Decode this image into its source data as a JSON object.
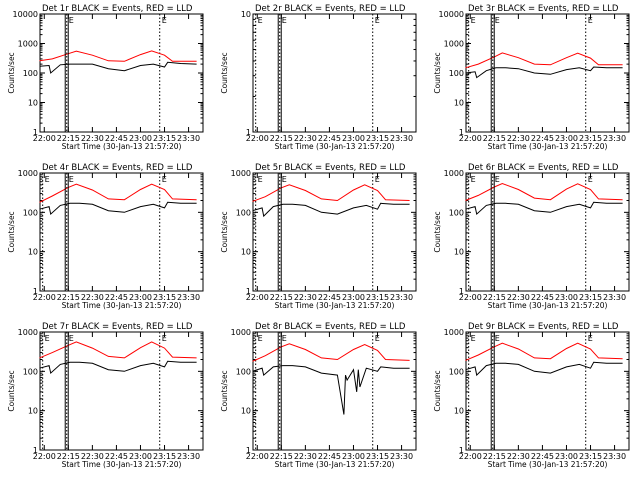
{
  "colors": {
    "events": "#000000",
    "lld": "#ff0000",
    "axes": "#000000",
    "background": "#ffffff"
  },
  "chart_data": [
    {
      "type": "line",
      "title": "Det 1r BLACK = Events, RED = LLD",
      "xlabel": "Start Time (30-Jan-13 21:57:20)",
      "ylabel": "Counts/sec",
      "x_ticks": [
        "22:00",
        "22:15",
        "22:30",
        "22:45",
        "23:00",
        "23:15",
        "23:30"
      ],
      "y_ticks": [
        "1",
        "10",
        "100",
        "1000",
        "10000"
      ],
      "ylim": [
        1,
        10000
      ],
      "log_y": true,
      "markers": [
        {
          "time": "22:14",
          "label": "E"
        },
        {
          "time": "23:12",
          "label": "E"
        }
      ],
      "series": [
        {
          "name": "BLACK = Events",
          "color": "#000000",
          "x": [
            "21:57",
            "22:03",
            "22:04",
            "22:10",
            "22:16",
            "22:22",
            "22:30",
            "22:40",
            "22:50",
            "23:00",
            "23:08",
            "23:15",
            "23:17",
            "23:25",
            "23:35"
          ],
          "y": [
            170,
            180,
            100,
            190,
            200,
            200,
            200,
            140,
            120,
            180,
            200,
            160,
            230,
            210,
            200
          ]
        },
        {
          "name": "RED = LLD",
          "color": "#ff0000",
          "x": [
            "21:57",
            "22:05",
            "22:15",
            "22:20",
            "22:30",
            "22:40",
            "22:50",
            "23:00",
            "23:07",
            "23:15",
            "23:20",
            "23:35"
          ],
          "y": [
            260,
            300,
            450,
            550,
            400,
            260,
            250,
            420,
            560,
            400,
            250,
            250
          ]
        }
      ]
    },
    {
      "type": "line",
      "title": "Det 2r BLACK = Events, RED = LLD",
      "xlabel": "Start Time (30-Jan-13 21:57:20)",
      "ylabel": "Counts/sec",
      "x_ticks": [
        "22:00",
        "22:15",
        "22:30",
        "22:45",
        "23:00",
        "23:15",
        "23:30"
      ],
      "y_ticks": [
        "1",
        "10"
      ],
      "ylim": [
        1,
        10
      ],
      "log_y": true,
      "markers": [
        {
          "time": "21:59",
          "label": "E"
        },
        {
          "time": "22:14",
          "label": "E"
        },
        {
          "time": "23:12",
          "label": "E"
        }
      ],
      "series": []
    },
    {
      "type": "line",
      "title": "Det 3r BLACK = Events, RED = LLD",
      "xlabel": "Start Time (30-Jan-13 21:57:20)",
      "ylabel": "Counts/sec",
      "x_ticks": [
        "22:00",
        "22:15",
        "22:30",
        "22:45",
        "23:00",
        "23:15",
        "23:30"
      ],
      "y_ticks": [
        "1",
        "10",
        "100",
        "1000",
        "10000"
      ],
      "ylim": [
        1,
        10000
      ],
      "log_y": true,
      "markers": [
        {
          "time": "21:59",
          "label": "E"
        },
        {
          "time": "22:14",
          "label": "E"
        },
        {
          "time": "23:12",
          "label": "E"
        }
      ],
      "series": [
        {
          "name": "BLACK = Events",
          "color": "#000000",
          "x": [
            "21:57",
            "22:03",
            "22:04",
            "22:10",
            "22:16",
            "22:22",
            "22:30",
            "22:40",
            "22:50",
            "23:00",
            "23:08",
            "23:15",
            "23:17",
            "23:25",
            "23:35"
          ],
          "y": [
            100,
            110,
            70,
            120,
            150,
            150,
            140,
            100,
            90,
            130,
            150,
            120,
            160,
            150,
            150
          ]
        },
        {
          "name": "RED = LLD",
          "color": "#ff0000",
          "x": [
            "21:57",
            "22:05",
            "22:15",
            "22:20",
            "22:30",
            "22:40",
            "22:50",
            "23:00",
            "23:07",
            "23:15",
            "23:20",
            "23:35"
          ],
          "y": [
            150,
            200,
            350,
            480,
            330,
            200,
            190,
            330,
            470,
            320,
            190,
            190
          ]
        }
      ]
    },
    {
      "type": "line",
      "title": "Det 4r BLACK = Events, RED = LLD",
      "xlabel": "Start Time (30-Jan-13 21:57:20)",
      "ylabel": "Counts/sec",
      "x_ticks": [
        "22:00",
        "22:15",
        "22:30",
        "22:45",
        "23:00",
        "23:15",
        "23:30"
      ],
      "y_ticks": [
        "1",
        "10",
        "100",
        "1000"
      ],
      "ylim": [
        1,
        1000
      ],
      "log_y": true,
      "markers": [
        {
          "time": "21:59",
          "label": "E"
        },
        {
          "time": "22:14",
          "label": "E"
        },
        {
          "time": "23:12",
          "label": "E"
        }
      ],
      "series": [
        {
          "name": "BLACK = Events",
          "color": "#000000",
          "x": [
            "21:57",
            "22:03",
            "22:04",
            "22:10",
            "22:16",
            "22:22",
            "22:30",
            "22:40",
            "22:50",
            "23:00",
            "23:08",
            "23:15",
            "23:17",
            "23:25",
            "23:35"
          ],
          "y": [
            120,
            140,
            90,
            150,
            170,
            170,
            160,
            110,
            100,
            140,
            160,
            130,
            180,
            170,
            170
          ]
        },
        {
          "name": "RED = LLD",
          "color": "#ff0000",
          "x": [
            "21:57",
            "22:05",
            "22:15",
            "22:20",
            "22:30",
            "22:40",
            "22:50",
            "23:00",
            "23:07",
            "23:15",
            "23:20",
            "23:35"
          ],
          "y": [
            180,
            260,
            430,
            520,
            370,
            220,
            210,
            380,
            520,
            380,
            220,
            210
          ]
        }
      ]
    },
    {
      "type": "line",
      "title": "Det 5r BLACK = Events, RED = LLD",
      "xlabel": "Start Time (30-Jan-13 21:57:20)",
      "ylabel": "Counts/sec",
      "x_ticks": [
        "22:00",
        "22:15",
        "22:30",
        "22:45",
        "23:00",
        "23:15",
        "23:30"
      ],
      "y_ticks": [
        "1",
        "10",
        "100",
        "1000"
      ],
      "ylim": [
        1,
        1000
      ],
      "log_y": true,
      "markers": [
        {
          "time": "21:59",
          "label": "E"
        },
        {
          "time": "22:14",
          "label": "E"
        },
        {
          "time": "23:12",
          "label": "E"
        }
      ],
      "series": [
        {
          "name": "BLACK = Events",
          "color": "#000000",
          "x": [
            "21:57",
            "22:03",
            "22:04",
            "22:10",
            "22:16",
            "22:22",
            "22:30",
            "22:40",
            "22:50",
            "23:00",
            "23:08",
            "23:15",
            "23:17",
            "23:25",
            "23:35"
          ],
          "y": [
            110,
            130,
            80,
            140,
            160,
            160,
            150,
            100,
            90,
            130,
            150,
            120,
            170,
            160,
            160
          ]
        },
        {
          "name": "RED = LLD",
          "color": "#ff0000",
          "x": [
            "21:57",
            "22:05",
            "22:15",
            "22:20",
            "22:30",
            "22:40",
            "22:50",
            "23:00",
            "23:07",
            "23:15",
            "23:20",
            "23:35"
          ],
          "y": [
            190,
            250,
            420,
            500,
            360,
            220,
            200,
            370,
            500,
            360,
            210,
            200
          ]
        }
      ]
    },
    {
      "type": "line",
      "title": "Det 6r BLACK = Events, RED = LLD",
      "xlabel": "Start Time (30-Jan-13 21:57:20)",
      "ylabel": "Counts/sec",
      "x_ticks": [
        "22:00",
        "22:15",
        "22:30",
        "22:45",
        "23:00",
        "23:15",
        "23:30"
      ],
      "y_ticks": [
        "1",
        "10",
        "100",
        "1000"
      ],
      "ylim": [
        1,
        1000
      ],
      "log_y": true,
      "markers": [
        {
          "time": "21:59",
          "label": "E"
        },
        {
          "time": "22:14",
          "label": "E"
        },
        {
          "time": "23:12",
          "label": "E"
        }
      ],
      "series": [
        {
          "name": "BLACK = Events",
          "color": "#000000",
          "x": [
            "21:57",
            "22:03",
            "22:04",
            "22:10",
            "22:16",
            "22:22",
            "22:30",
            "22:40",
            "22:50",
            "23:00",
            "23:08",
            "23:15",
            "23:17",
            "23:25",
            "23:35"
          ],
          "y": [
            120,
            140,
            90,
            150,
            170,
            170,
            160,
            110,
            100,
            140,
            160,
            130,
            180,
            170,
            170
          ]
        },
        {
          "name": "RED = LLD",
          "color": "#ff0000",
          "x": [
            "21:57",
            "22:05",
            "22:15",
            "22:20",
            "22:30",
            "22:40",
            "22:50",
            "23:00",
            "23:07",
            "23:15",
            "23:20",
            "23:35"
          ],
          "y": [
            200,
            270,
            440,
            540,
            380,
            230,
            210,
            390,
            530,
            380,
            220,
            210
          ]
        }
      ]
    },
    {
      "type": "line",
      "title": "Det 7r BLACK = Events, RED = LLD",
      "xlabel": "Start Time (30-Jan-13 21:57:20)",
      "ylabel": "Counts/sec",
      "x_ticks": [
        "22:00",
        "22:15",
        "22:30",
        "22:45",
        "23:00",
        "23:15",
        "23:30"
      ],
      "y_ticks": [
        "1",
        "10",
        "100",
        "1000"
      ],
      "ylim": [
        1,
        1000
      ],
      "log_y": true,
      "markers": [
        {
          "time": "21:59",
          "label": "E"
        },
        {
          "time": "22:14",
          "label": "E"
        },
        {
          "time": "23:12",
          "label": "E"
        }
      ],
      "series": [
        {
          "name": "BLACK = Events",
          "color": "#000000",
          "x": [
            "21:57",
            "22:03",
            "22:04",
            "22:10",
            "22:16",
            "22:22",
            "22:30",
            "22:40",
            "22:50",
            "23:00",
            "23:08",
            "23:15",
            "23:17",
            "23:25",
            "23:35"
          ],
          "y": [
            120,
            140,
            90,
            150,
            170,
            170,
            160,
            110,
            100,
            140,
            160,
            130,
            180,
            170,
            170
          ]
        },
        {
          "name": "RED = LLD",
          "color": "#ff0000",
          "x": [
            "21:57",
            "22:05",
            "22:15",
            "22:20",
            "22:30",
            "22:40",
            "22:50",
            "23:00",
            "23:07",
            "23:15",
            "23:20",
            "23:35"
          ],
          "y": [
            220,
            300,
            460,
            560,
            390,
            240,
            220,
            400,
            560,
            390,
            230,
            220
          ]
        }
      ]
    },
    {
      "type": "line",
      "title": "Det 8r BLACK = Events, RED = LLD",
      "xlabel": "Start Time (30-Jan-13 21:57:20)",
      "ylabel": "Counts/sec",
      "x_ticks": [
        "22:00",
        "22:15",
        "22:30",
        "22:45",
        "23:00",
        "23:15",
        "23:30"
      ],
      "y_ticks": [
        "1",
        "10",
        "100",
        "1000"
      ],
      "ylim": [
        1,
        1000
      ],
      "log_y": true,
      "markers": [
        {
          "time": "21:59",
          "label": "E"
        },
        {
          "time": "22:14",
          "label": "E"
        },
        {
          "time": "23:12",
          "label": "E"
        }
      ],
      "series": [
        {
          "name": "BLACK = Events",
          "color": "#000000",
          "x": [
            "21:57",
            "22:03",
            "22:04",
            "22:10",
            "22:16",
            "22:22",
            "22:30",
            "22:40",
            "22:50",
            "22:54",
            "22:55",
            "22:56",
            "23:00",
            "23:02",
            "23:03",
            "23:04",
            "23:08",
            "23:15",
            "23:17",
            "23:25",
            "23:35"
          ],
          "y": [
            100,
            120,
            80,
            130,
            140,
            140,
            130,
            90,
            80,
            8,
            80,
            60,
            110,
            30,
            110,
            40,
            120,
            100,
            130,
            120,
            120
          ]
        },
        {
          "name": "RED = LLD",
          "color": "#ff0000",
          "x": [
            "21:57",
            "22:05",
            "22:15",
            "22:20",
            "22:30",
            "22:40",
            "22:50",
            "23:00",
            "23:07",
            "23:15",
            "23:20",
            "23:35"
          ],
          "y": [
            180,
            250,
            420,
            500,
            360,
            220,
            200,
            360,
            480,
            340,
            200,
            190
          ]
        }
      ]
    },
    {
      "type": "line",
      "title": "Det 9r BLACK = Events, RED = LLD",
      "xlabel": "Start Time (30-Jan-13 21:57:20)",
      "ylabel": "Counts/sec",
      "x_ticks": [
        "22:00",
        "22:15",
        "22:30",
        "22:45",
        "23:00",
        "23:15",
        "23:30"
      ],
      "y_ticks": [
        "1",
        "10",
        "100",
        "1000"
      ],
      "ylim": [
        1,
        1000
      ],
      "log_y": true,
      "markers": [
        {
          "time": "21:59",
          "label": "E"
        },
        {
          "time": "22:14",
          "label": "E"
        },
        {
          "time": "23:12",
          "label": "E"
        }
      ],
      "series": [
        {
          "name": "BLACK = Events",
          "color": "#000000",
          "x": [
            "21:57",
            "22:03",
            "22:04",
            "22:10",
            "22:16",
            "22:22",
            "22:30",
            "22:40",
            "22:50",
            "23:00",
            "23:08",
            "23:15",
            "23:17",
            "23:25",
            "23:35"
          ],
          "y": [
            110,
            130,
            80,
            140,
            160,
            160,
            150,
            100,
            90,
            130,
            150,
            120,
            170,
            160,
            160
          ]
        },
        {
          "name": "RED = LLD",
          "color": "#ff0000",
          "x": [
            "21:57",
            "22:05",
            "22:15",
            "22:20",
            "22:30",
            "22:40",
            "22:50",
            "23:00",
            "23:07",
            "23:15",
            "23:20",
            "23:35"
          ],
          "y": [
            190,
            260,
            420,
            520,
            370,
            220,
            210,
            380,
            520,
            370,
            220,
            210
          ]
        }
      ]
    }
  ]
}
